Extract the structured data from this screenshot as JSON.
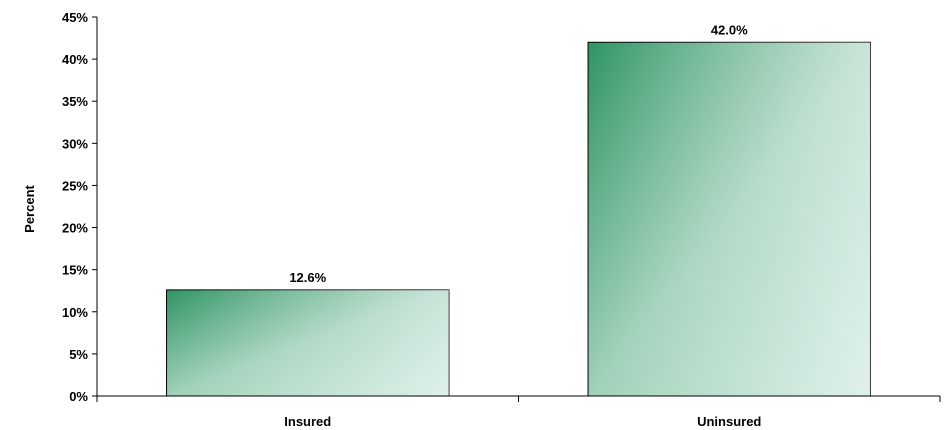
{
  "chart_data": {
    "type": "bar",
    "ylabel": "Percent",
    "xlabel": "",
    "categories": [
      "Insured",
      "Uninsured"
    ],
    "values": [
      12.6,
      42.0
    ],
    "data_labels": [
      "12.6%",
      "42.0%"
    ],
    "ylim": [
      0,
      45
    ],
    "yticks": [
      0,
      5,
      10,
      15,
      20,
      25,
      30,
      35,
      40,
      45
    ],
    "ytick_labels": [
      "0%",
      "5%",
      "10%",
      "15%",
      "20%",
      "25%",
      "30%",
      "35%",
      "40%",
      "45%"
    ],
    "grid": false,
    "legend": "none",
    "colors": {
      "bar_dark": "#2f9463",
      "bar_light": "#bfe3d3",
      "bar_edge": "#000000",
      "axis": "#000000"
    }
  }
}
